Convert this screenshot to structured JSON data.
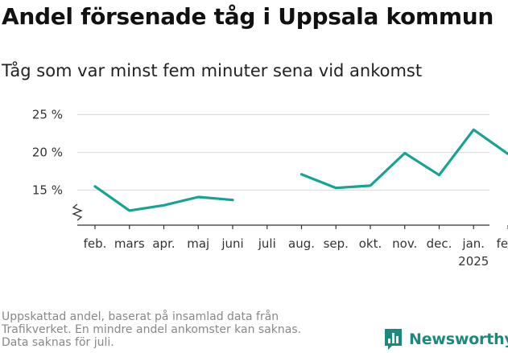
{
  "title": "Andel försenade tåg i Uppsala kommun",
  "subtitle": "Tåg som var minst fem minuter sena vid ankomst",
  "footnote": [
    "Uppskattad andel, baserat på insamlad data från",
    "Trafikverket. En mindre andel ankomster kan saknas.",
    "Data saknas för juli."
  ],
  "logo": {
    "text": "Newsworthy",
    "icon": "bar-chart-logo-icon",
    "color": "#1a8a7f"
  },
  "chart_data": {
    "type": "line",
    "title": "Andel försenade tåg i Uppsala kommun",
    "subtitle": "Tåg som var minst fem minuter sena vid ankomst",
    "xlabel": "",
    "ylabel": "",
    "categories": [
      "feb.",
      "mars",
      "apr.",
      "maj",
      "juni",
      "juli",
      "aug.",
      "sep.",
      "okt.",
      "nov.",
      "dec.",
      "jan.",
      "feb."
    ],
    "category_sublabels": [
      "",
      "",
      "",
      "",
      "",
      "",
      "",
      "",
      "",
      "",
      "",
      "2025",
      ""
    ],
    "series": [
      {
        "values": [
          15.5,
          12.3,
          13.0,
          14.1,
          13.7,
          null,
          17.1,
          15.3,
          15.6,
          19.9,
          17.0,
          23.0,
          19.8
        ]
      }
    ],
    "yticks": [
      15,
      20,
      25
    ],
    "ytick_labels": [
      "15 %",
      "20 %",
      "25 %"
    ],
    "ylim": [
      11,
      26.5
    ],
    "axis_break": true,
    "grid": true,
    "line_color": "#17a393",
    "grid_color": "#dddddd"
  }
}
